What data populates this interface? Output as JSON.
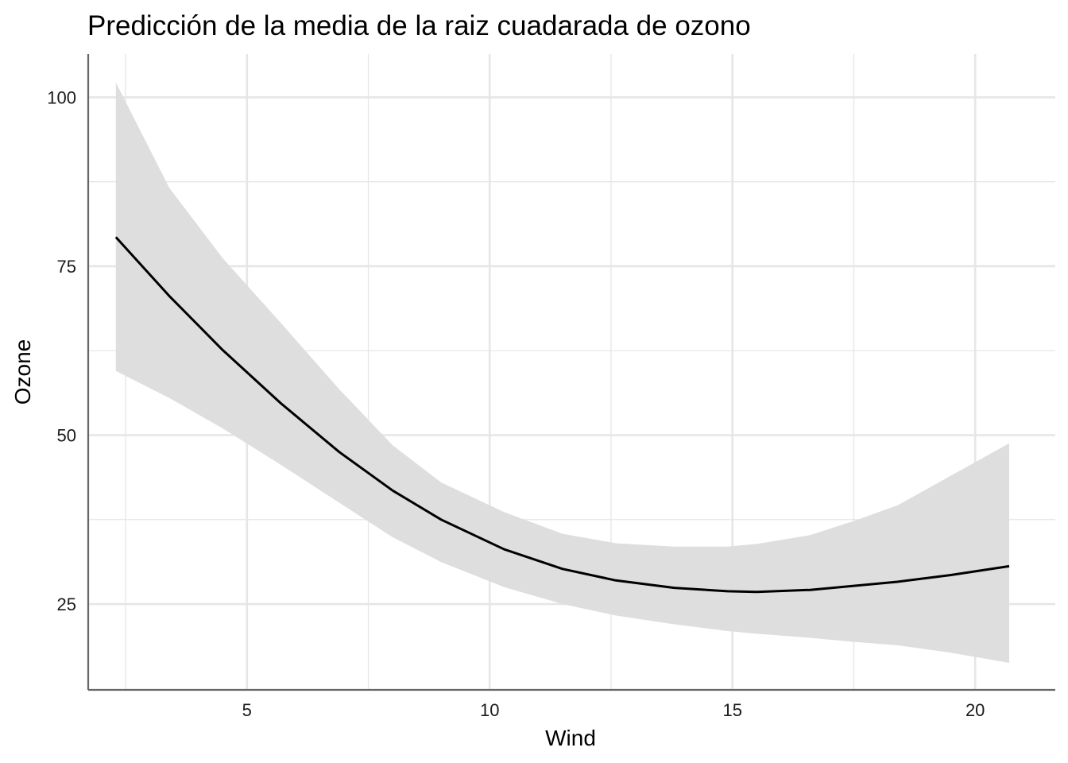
{
  "chart_data": {
    "type": "line",
    "title": "Predicción de la media de la raiz cuadarada de ozono",
    "xlabel": "Wind",
    "ylabel": "Ozone",
    "xlim": [
      1.73,
      21.65
    ],
    "ylim": [
      12.3,
      106.4
    ],
    "x_ticks": [
      5,
      10,
      15,
      20
    ],
    "y_ticks": [
      25,
      50,
      75,
      100
    ],
    "x_minor_grid": [
      2.5,
      7.5,
      12.5,
      17.5
    ],
    "y_minor_grid": [
      37.5,
      62.5,
      87.5
    ],
    "grid": true,
    "legend": "none",
    "colors": {
      "line": "#000000",
      "band": "#dedede",
      "grid": "#e6e6e6",
      "axis": "#666666"
    },
    "series": [
      {
        "x": [
          2.3,
          3.4,
          4.5,
          5.7,
          6.9,
          8.0,
          9.0,
          10.3,
          11.5,
          12.6,
          13.8,
          14.9,
          15.5,
          16.6,
          17.5,
          18.4,
          19.5,
          20.7
        ],
        "y": [
          79.3,
          70.6,
          62.6,
          54.7,
          47.5,
          41.8,
          37.5,
          33.1,
          30.2,
          28.5,
          27.4,
          26.9,
          26.8,
          27.1,
          27.7,
          28.3,
          29.3,
          30.6
        ],
        "lower": [
          59.5,
          55.5,
          51.0,
          45.6,
          40.0,
          34.9,
          31.2,
          27.5,
          25.0,
          23.3,
          22.0,
          21.0,
          20.6,
          20.0,
          19.4,
          18.9,
          17.8,
          16.3
        ],
        "upper": [
          102.2,
          86.6,
          76.2,
          66.6,
          56.8,
          48.5,
          43.0,
          38.6,
          35.4,
          34.0,
          33.5,
          33.5,
          33.9,
          35.2,
          37.3,
          39.6,
          44.0,
          48.8
        ]
      }
    ]
  }
}
